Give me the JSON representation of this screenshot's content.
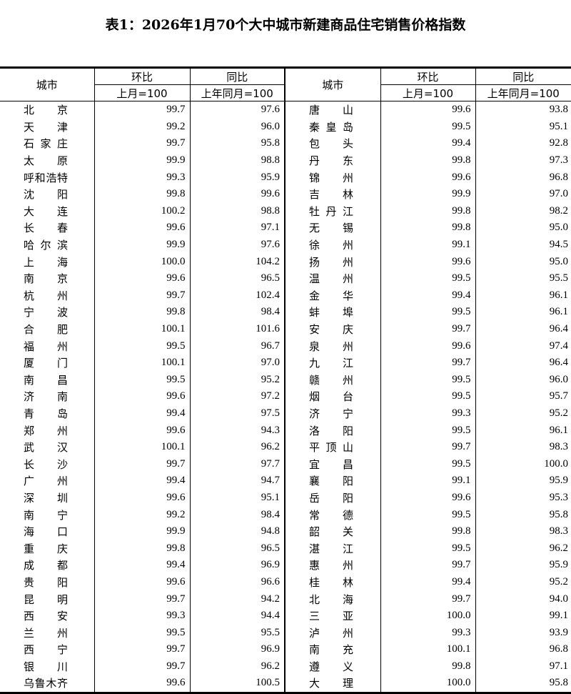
{
  "title": "表1：2026年1月70个大中城市新建商品住宅销售价格指数",
  "headers": {
    "city": "城市",
    "mom": "环比",
    "yoy": "同比",
    "mom_base": "上月=100",
    "yoy_base": "上年同月=100"
  },
  "left": [
    {
      "city": "北京",
      "mom": "99.7",
      "yoy": "97.6"
    },
    {
      "city": "天津",
      "mom": "99.2",
      "yoy": "96.0"
    },
    {
      "city": "石家庄",
      "mom": "99.7",
      "yoy": "95.8"
    },
    {
      "city": "太原",
      "mom": "99.9",
      "yoy": "98.8"
    },
    {
      "city": "呼和浩特",
      "mom": "99.3",
      "yoy": "95.9"
    },
    {
      "city": "沈阳",
      "mom": "99.8",
      "yoy": "99.6"
    },
    {
      "city": "大连",
      "mom": "100.2",
      "yoy": "98.8"
    },
    {
      "city": "长春",
      "mom": "99.6",
      "yoy": "97.1"
    },
    {
      "city": "哈尔滨",
      "mom": "99.9",
      "yoy": "97.6"
    },
    {
      "city": "上海",
      "mom": "100.0",
      "yoy": "104.2"
    },
    {
      "city": "南京",
      "mom": "99.6",
      "yoy": "96.5"
    },
    {
      "city": "杭州",
      "mom": "99.7",
      "yoy": "102.4"
    },
    {
      "city": "宁波",
      "mom": "99.8",
      "yoy": "98.4"
    },
    {
      "city": "合肥",
      "mom": "100.1",
      "yoy": "101.6"
    },
    {
      "city": "福州",
      "mom": "99.5",
      "yoy": "96.7"
    },
    {
      "city": "厦门",
      "mom": "100.1",
      "yoy": "97.0"
    },
    {
      "city": "南昌",
      "mom": "99.5",
      "yoy": "95.2"
    },
    {
      "city": "济南",
      "mom": "99.6",
      "yoy": "97.2"
    },
    {
      "city": "青岛",
      "mom": "99.4",
      "yoy": "97.5"
    },
    {
      "city": "郑州",
      "mom": "99.6",
      "yoy": "94.3"
    },
    {
      "city": "武汉",
      "mom": "100.1",
      "yoy": "96.2"
    },
    {
      "city": "长沙",
      "mom": "99.7",
      "yoy": "97.7"
    },
    {
      "city": "广州",
      "mom": "99.4",
      "yoy": "94.7"
    },
    {
      "city": "深圳",
      "mom": "99.6",
      "yoy": "95.1"
    },
    {
      "city": "南宁",
      "mom": "99.2",
      "yoy": "98.4"
    },
    {
      "city": "海口",
      "mom": "99.9",
      "yoy": "94.8"
    },
    {
      "city": "重庆",
      "mom": "99.8",
      "yoy": "96.5"
    },
    {
      "city": "成都",
      "mom": "99.4",
      "yoy": "96.9"
    },
    {
      "city": "贵阳",
      "mom": "99.6",
      "yoy": "96.6"
    },
    {
      "city": "昆明",
      "mom": "99.7",
      "yoy": "94.2"
    },
    {
      "city": "西安",
      "mom": "99.3",
      "yoy": "94.4"
    },
    {
      "city": "兰州",
      "mom": "99.5",
      "yoy": "95.5"
    },
    {
      "city": "西宁",
      "mom": "99.7",
      "yoy": "96.9"
    },
    {
      "city": "银川",
      "mom": "99.7",
      "yoy": "96.2"
    },
    {
      "city": "乌鲁木齐",
      "mom": "99.6",
      "yoy": "100.5"
    }
  ],
  "right": [
    {
      "city": "唐山",
      "mom": "99.6",
      "yoy": "93.8"
    },
    {
      "city": "秦皇岛",
      "mom": "99.5",
      "yoy": "95.1"
    },
    {
      "city": "包头",
      "mom": "99.4",
      "yoy": "92.8"
    },
    {
      "city": "丹东",
      "mom": "99.8",
      "yoy": "97.3"
    },
    {
      "city": "锦州",
      "mom": "99.6",
      "yoy": "96.8"
    },
    {
      "city": "吉林",
      "mom": "99.9",
      "yoy": "97.0"
    },
    {
      "city": "牡丹江",
      "mom": "99.8",
      "yoy": "98.2"
    },
    {
      "city": "无锡",
      "mom": "99.8",
      "yoy": "95.0"
    },
    {
      "city": "徐州",
      "mom": "99.1",
      "yoy": "94.5"
    },
    {
      "city": "扬州",
      "mom": "99.6",
      "yoy": "95.0"
    },
    {
      "city": "温州",
      "mom": "99.5",
      "yoy": "95.5"
    },
    {
      "city": "金华",
      "mom": "99.4",
      "yoy": "96.1"
    },
    {
      "city": "蚌埠",
      "mom": "99.5",
      "yoy": "96.1"
    },
    {
      "city": "安庆",
      "mom": "99.7",
      "yoy": "96.4"
    },
    {
      "city": "泉州",
      "mom": "99.6",
      "yoy": "97.4"
    },
    {
      "city": "九江",
      "mom": "99.7",
      "yoy": "96.4"
    },
    {
      "city": "赣州",
      "mom": "99.5",
      "yoy": "96.0"
    },
    {
      "city": "烟台",
      "mom": "99.5",
      "yoy": "95.7"
    },
    {
      "city": "济宁",
      "mom": "99.3",
      "yoy": "95.2"
    },
    {
      "city": "洛阳",
      "mom": "99.5",
      "yoy": "96.1"
    },
    {
      "city": "平顶山",
      "mom": "99.7",
      "yoy": "98.3"
    },
    {
      "city": "宜昌",
      "mom": "99.5",
      "yoy": "100.0"
    },
    {
      "city": "襄阳",
      "mom": "99.1",
      "yoy": "95.9"
    },
    {
      "city": "岳阳",
      "mom": "99.6",
      "yoy": "95.3"
    },
    {
      "city": "常德",
      "mom": "99.5",
      "yoy": "95.8"
    },
    {
      "city": "韶关",
      "mom": "99.8",
      "yoy": "98.3"
    },
    {
      "city": "湛江",
      "mom": "99.5",
      "yoy": "96.2"
    },
    {
      "city": "惠州",
      "mom": "99.7",
      "yoy": "95.9"
    },
    {
      "city": "桂林",
      "mom": "99.4",
      "yoy": "95.2"
    },
    {
      "city": "北海",
      "mom": "99.7",
      "yoy": "94.0"
    },
    {
      "city": "三亚",
      "mom": "100.0",
      "yoy": "99.1"
    },
    {
      "city": "泸州",
      "mom": "99.3",
      "yoy": "93.9"
    },
    {
      "city": "南充",
      "mom": "100.1",
      "yoy": "96.8"
    },
    {
      "city": "遵义",
      "mom": "99.8",
      "yoy": "97.1"
    },
    {
      "city": "大理",
      "mom": "100.0",
      "yoy": "95.8"
    }
  ]
}
